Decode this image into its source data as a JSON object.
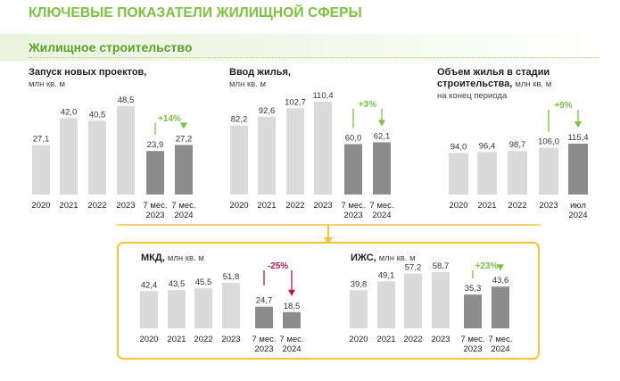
{
  "page": {
    "title": "КЛЮЧЕВЫЕ ПОКАЗАТЕЛИ ЖИЛИЩНОЙ СФЕРЫ",
    "section": "Жилищное строительство"
  },
  "colors": {
    "title_green": "#7dc142",
    "bar_light": "#dadada",
    "bar_dark": "#8c8c8c",
    "growth_green": "#7dc142",
    "decline_red": "#b5174e",
    "accent_yellow": "#f6c531"
  },
  "chart_data": [
    {
      "id": "launch",
      "type": "bar",
      "title": "Запуск новых проектов,",
      "unit": "млн кв. м",
      "categories": [
        "2020",
        "2021",
        "2022",
        "2023",
        "7 мес. 2023",
        "7 мес. 2024"
      ],
      "values": [
        27.1,
        42.0,
        40.5,
        48.5,
        23.9,
        27.2
      ],
      "labels": [
        "27,1",
        "42,0",
        "40,5",
        "48,5",
        "23,9",
        "27,2"
      ],
      "highlight": [
        false,
        false,
        false,
        false,
        true,
        true
      ],
      "growth": "+14%",
      "growth_direction": "up",
      "ylim": [
        0,
        48.5
      ]
    },
    {
      "id": "commissioning",
      "type": "bar",
      "title": "Ввод жилья,",
      "unit": "млн кв. м",
      "categories": [
        "2020",
        "2021",
        "2022",
        "2023",
        "7 мес. 2023",
        "7 мес. 2024"
      ],
      "values": [
        82.2,
        92.6,
        102.7,
        110.4,
        60.0,
        62.1
      ],
      "labels": [
        "82,2",
        "92,6",
        "102,7",
        "110,4",
        "60,0",
        "62,1"
      ],
      "highlight": [
        false,
        false,
        false,
        false,
        true,
        true
      ],
      "growth": "+3%",
      "growth_direction": "up",
      "ylim": [
        0,
        110.4
      ]
    },
    {
      "id": "under_construction",
      "type": "bar",
      "title": "Объем жилья в стадии строительства,",
      "unit": "млн кв. м",
      "subtitle": "на конец периода",
      "categories": [
        "2020",
        "2021",
        "2022",
        "2023",
        "июл 2024"
      ],
      "values": [
        94.0,
        96.4,
        98.7,
        106.0,
        115.4
      ],
      "labels": [
        "94,0",
        "96,4",
        "98,7",
        "106,0",
        "115,4"
      ],
      "highlight": [
        false,
        false,
        false,
        false,
        true
      ],
      "growth": "+9%",
      "growth_direction": "up",
      "ylim": [
        0,
        115.4
      ]
    },
    {
      "id": "mkd",
      "type": "bar",
      "title": "МКД,",
      "unit": "млн кв. м",
      "categories": [
        "2020",
        "2021",
        "2022",
        "2023",
        "7 мес. 2023",
        "7 мес. 2024"
      ],
      "values": [
        42.4,
        43.5,
        45.5,
        51.8,
        24.7,
        18.5
      ],
      "labels": [
        "42,4",
        "43,5",
        "45,5",
        "51,8",
        "24,7",
        "18,5"
      ],
      "highlight": [
        false,
        false,
        false,
        false,
        true,
        true
      ],
      "growth": "-25%",
      "growth_direction": "down",
      "ylim": [
        0,
        51.8
      ]
    },
    {
      "id": "izhs",
      "type": "bar",
      "title": "ИЖС,",
      "unit": "млн кв. м",
      "categories": [
        "2020",
        "2021",
        "2022",
        "2023",
        "7 мес. 2023",
        "7 мес. 2024"
      ],
      "values": [
        39.8,
        49.1,
        57.2,
        58.7,
        35.3,
        43.6
      ],
      "labels": [
        "39,8",
        "49,1",
        "57,2",
        "58,7",
        "35,3",
        "43,6"
      ],
      "highlight": [
        false,
        false,
        false,
        false,
        true,
        true
      ],
      "growth": "+23%",
      "growth_direction": "up",
      "ylim": [
        0,
        58.7
      ]
    }
  ]
}
